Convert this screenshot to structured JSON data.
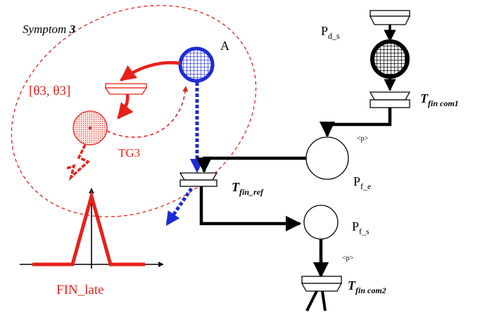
{
  "symptom": {
    "label": "Symptom ",
    "number": "3"
  },
  "places": {
    "a": "A",
    "pds": {
      "main": "P",
      "sub": "d_s"
    },
    "pfe": {
      "main": "P",
      "sub": "f_e"
    },
    "pfs": {
      "main": "P",
      "sub": "f_s"
    },
    "tg3": "TG3"
  },
  "transitions": {
    "interval": "[θ3, θ3]",
    "fin_com1": {
      "main": "T",
      "sub": "fin com1"
    },
    "fin_ref": {
      "main": "T",
      "sub": "fin_ref"
    },
    "fin_com2": {
      "main": "T",
      "sub": "fin com2"
    }
  },
  "arc_labels": {
    "p1": "<p>",
    "p2": "<p>"
  },
  "fin_late": "FIN_late",
  "colors": {
    "symptom": "#e8201a",
    "blue": "#1f2bd6",
    "black": "#000000"
  }
}
